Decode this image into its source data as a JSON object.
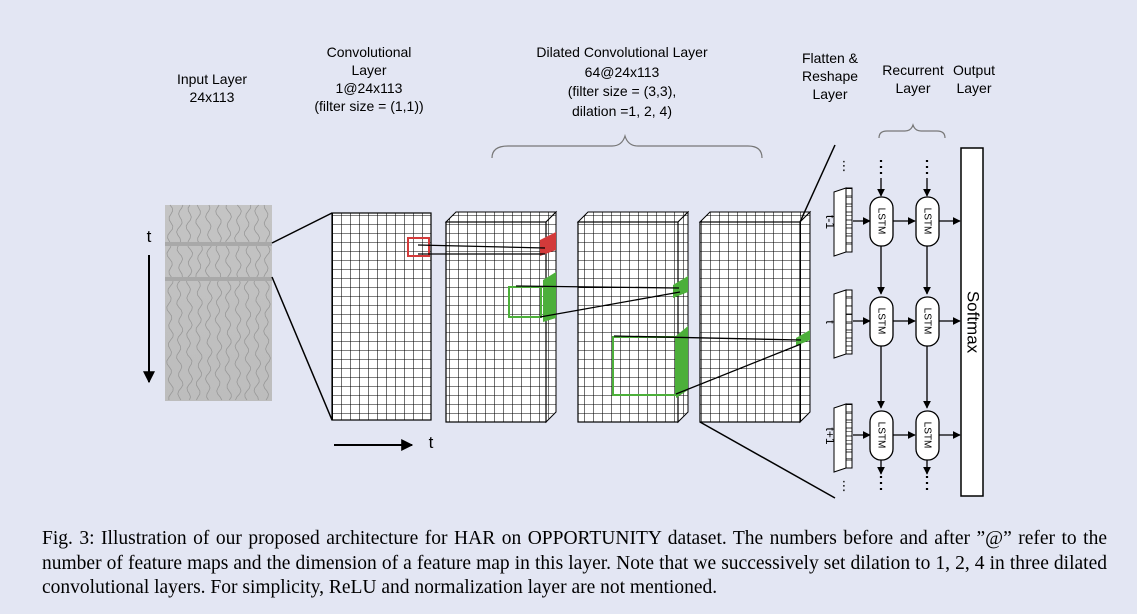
{
  "figure": {
    "input_layer": {
      "title": "Input Layer",
      "dims": "24x113"
    },
    "conv_layer": {
      "title_line1": "Convolutional",
      "title_line2": "Layer",
      "dims": "1@24x113",
      "filter": "(filter size = (1,1))"
    },
    "dilated_layer": {
      "title": "Dilated Convolutional Layer",
      "dims": "64@24x113",
      "filter": "(filter size = (3,3),",
      "dilation": "dilation =1, 2, 4)"
    },
    "flatten_layer": {
      "line1": "Flatten &",
      "line2": "Reshape",
      "line3": "Layer"
    },
    "recurrent_layer": {
      "line1": "Recurrent",
      "line2": "Layer"
    },
    "output_layer": {
      "line1": "Output",
      "line2": "Layer"
    },
    "axis": {
      "time_vertical": "t",
      "time_horizontal": "t"
    },
    "lstm_label": "LSTM",
    "softmax_label": "Softmax",
    "step_labels": {
      "prev": "t-1",
      "current": "t",
      "next": "t+1"
    },
    "colors": {
      "background": "#e3e6f3",
      "red_highlight": "#d33a3a",
      "green_highlight": "#4caf3a",
      "grid": "#000000"
    }
  },
  "caption": {
    "text": "Fig. 3: Illustration of our proposed architecture for HAR on OPPORTUNITY dataset. The numbers before and after ”@” refer to the number of feature maps and the dimension of a feature map in this layer. Note that we successively set dilation to 1, 2, 4 in three dilated convolutional layers. For simplicity, ReLU and normalization layer are not mentioned."
  }
}
